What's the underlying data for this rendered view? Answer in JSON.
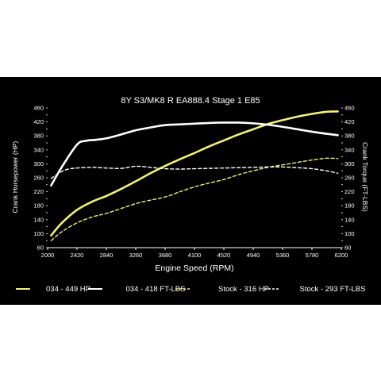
{
  "chart_data": {
    "type": "line",
    "title": "8Y S3/MK8 R EA888.4 Stage 1 E85",
    "xlabel": "Engine Speed (RPM)",
    "ylabel_left": "Crank Horsepower (HP)",
    "ylabel_right": "Crank Torque (FT-LBS)",
    "xlim": [
      2000,
      6200
    ],
    "ylim": [
      60,
      460
    ],
    "x_ticks": [
      "2000",
      "2420",
      "2840",
      "3260",
      "3680",
      "4100",
      "4520",
      "4940",
      "5360",
      "5780",
      "6200"
    ],
    "y_ticks": [
      "60",
      "80",
      "100",
      "120",
      "140",
      "160",
      "180",
      "200",
      "220",
      "240",
      "260",
      "280",
      "300",
      "320",
      "340",
      "360",
      "380",
      "400",
      "420",
      "440",
      "460"
    ],
    "grid": false,
    "legend_position": "bottom",
    "colors": {
      "background": "#000000",
      "text": "#ffffff",
      "white_series": "#ffffff",
      "yellow_series": "#f2f07a"
    },
    "series": [
      {
        "name": "034 - 449 HP",
        "color": "#f2f07a",
        "dash": "solid",
        "x": [
          2050,
          2200,
          2420,
          2640,
          2840,
          3050,
          3260,
          3470,
          3680,
          3890,
          4100,
          4310,
          4520,
          4730,
          4940,
          5150,
          5360,
          5570,
          5780,
          5990,
          6150
        ],
        "y": [
          95,
          130,
          168,
          192,
          208,
          228,
          250,
          273,
          294,
          313,
          331,
          350,
          367,
          384,
          399,
          414,
          425,
          435,
          443,
          449,
          450
        ]
      },
      {
        "name": "034 - 418 FT-LBS",
        "color": "#ffffff",
        "dash": "solid",
        "x": [
          2050,
          2200,
          2420,
          2550,
          2700,
          2840,
          3050,
          3260,
          3470,
          3680,
          3890,
          4100,
          4310,
          4520,
          4730,
          4940,
          5150,
          5360,
          5570,
          5780,
          5990,
          6150
        ],
        "y": [
          238,
          290,
          355,
          366,
          369,
          373,
          384,
          396,
          404,
          411,
          413,
          415,
          417,
          418,
          418,
          416,
          412,
          406,
          399,
          392,
          386,
          382
        ]
      },
      {
        "name": "Stock - 316 HP",
        "color": "#f2f07a",
        "dash": "dashed",
        "x": [
          2050,
          2200,
          2420,
          2640,
          2840,
          3050,
          3260,
          3470,
          3680,
          3890,
          4100,
          4310,
          4520,
          4730,
          4940,
          5150,
          5360,
          5570,
          5780,
          5990,
          6150
        ],
        "y": [
          80,
          105,
          131,
          148,
          158,
          172,
          186,
          196,
          205,
          220,
          234,
          245,
          255,
          269,
          280,
          290,
          297,
          304,
          311,
          316,
          315
        ]
      },
      {
        "name": "Stock - 293 FT-LBS",
        "color": "#ffffff",
        "dash": "dashed",
        "x": [
          2050,
          2200,
          2300,
          2420,
          2630,
          2840,
          3050,
          3260,
          3470,
          3680,
          3890,
          4100,
          4310,
          4520,
          4730,
          4940,
          5150,
          5360,
          5570,
          5780,
          5990,
          6150
        ],
        "y": [
          258,
          278,
          285,
          288,
          290,
          288,
          287,
          293,
          290,
          286,
          285,
          286,
          287,
          288,
          289,
          290,
          291,
          291,
          289,
          286,
          280,
          273
        ]
      }
    ]
  }
}
